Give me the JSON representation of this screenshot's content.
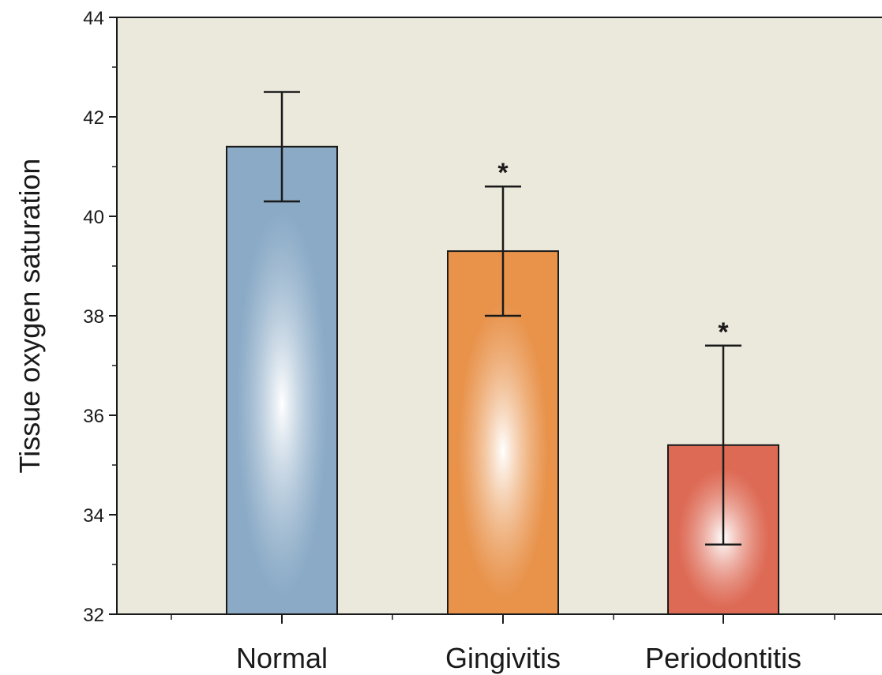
{
  "chart_data": {
    "type": "bar",
    "title": "",
    "xlabel": "",
    "ylabel": "Tissue oxygen saturation",
    "ylim": [
      32,
      44
    ],
    "yticks": [
      32,
      34,
      36,
      38,
      40,
      42,
      44
    ],
    "categories": [
      "Normal",
      "Gingivitis",
      "Periodontitis"
    ],
    "values": [
      41.4,
      39.3,
      35.4
    ],
    "error_lower": [
      40.3,
      38.0,
      33.4
    ],
    "error_upper": [
      42.5,
      40.6,
      37.4
    ],
    "annotations": [
      "",
      "*",
      "*"
    ],
    "colors": [
      "#8aaac6",
      "#e8924a",
      "#dd6a55"
    ],
    "background": "#ebe8dc",
    "grid": false
  }
}
